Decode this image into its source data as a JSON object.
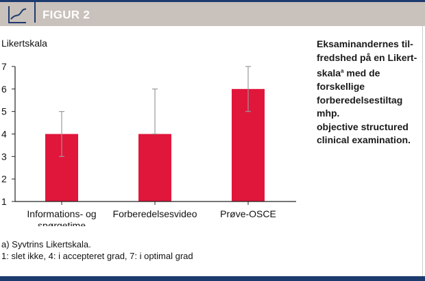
{
  "header": {
    "title": "FIGUR 2",
    "icon": "line-chart-icon"
  },
  "caption": {
    "lines": [
      "Eksaminandernes til-",
      "fredshed på en Likert-",
      "skala",
      "a",
      " med de forskellige",
      "forberedelsestiltag mhp.",
      "objective structured",
      "clinical examination."
    ]
  },
  "footnote": {
    "line1": "a) Syvtrins Likertskala.",
    "line2": "1: slet ikke, 4: i accepteret grad, 7: i optimal grad"
  },
  "chart_data": {
    "type": "bar",
    "ylabel": "Likertskala",
    "ylim": [
      1,
      7
    ],
    "yticks": [
      1,
      2,
      3,
      4,
      5,
      6,
      7
    ],
    "categories": [
      [
        "Informations- og",
        "spørgetime"
      ],
      [
        "Forberedelsesvideo"
      ],
      [
        "Prøve-OSCE"
      ]
    ],
    "values": [
      4,
      4,
      6
    ],
    "error_low": [
      3,
      4,
      5
    ],
    "error_high": [
      5,
      6,
      7
    ],
    "bar_color": "#e0163b",
    "error_color": "#999999"
  }
}
